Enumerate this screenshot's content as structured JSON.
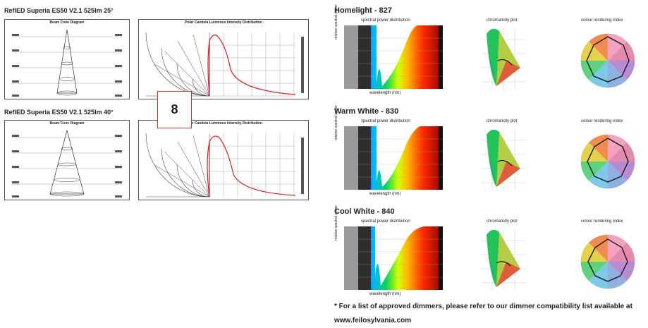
{
  "products": [
    {
      "title": "ReflED Superia ES50 V2.1 525lm 25°",
      "cone_title": "Beam Cone Diagram",
      "polar_title": "Polar Candela Luminous Intensity Distribution"
    },
    {
      "title": "ReflED Superia ES50 V2.1 525lm 40°",
      "cone_title": "Beam Cone Diagram",
      "polar_title": "Polar Candela Luminous Intensity Distribution"
    }
  ],
  "page_number": "8",
  "spectra": [
    {
      "title": "Homelight - 827",
      "spd_title": "spectral power distribution",
      "xlabel": "wavelength (nm)",
      "ylabel": "relative spectral power",
      "chrom_title": "chromaticity plot",
      "render_title": "colour rendering index"
    },
    {
      "title": "Warm White - 830",
      "spd_title": "spectral power distribution",
      "xlabel": "wavelength (nm)",
      "ylabel": "relative spectral power",
      "chrom_title": "chromaticity plot",
      "render_title": "colour rendering index"
    },
    {
      "title": "Cool White - 840",
      "spd_title": "spectral power distribution",
      "xlabel": "wavelength (nm)",
      "ylabel": "relative spectral power",
      "chrom_title": "chromaticity plot",
      "render_title": "colour rendering index"
    }
  ],
  "footer": {
    "note": "* For a list of approved dimmers, please refer to our dimmer compatibility list available at",
    "url": "www.feilosylvania.com"
  },
  "colors": {
    "curve": "#d21f26",
    "badge_border": "#c33333"
  }
}
